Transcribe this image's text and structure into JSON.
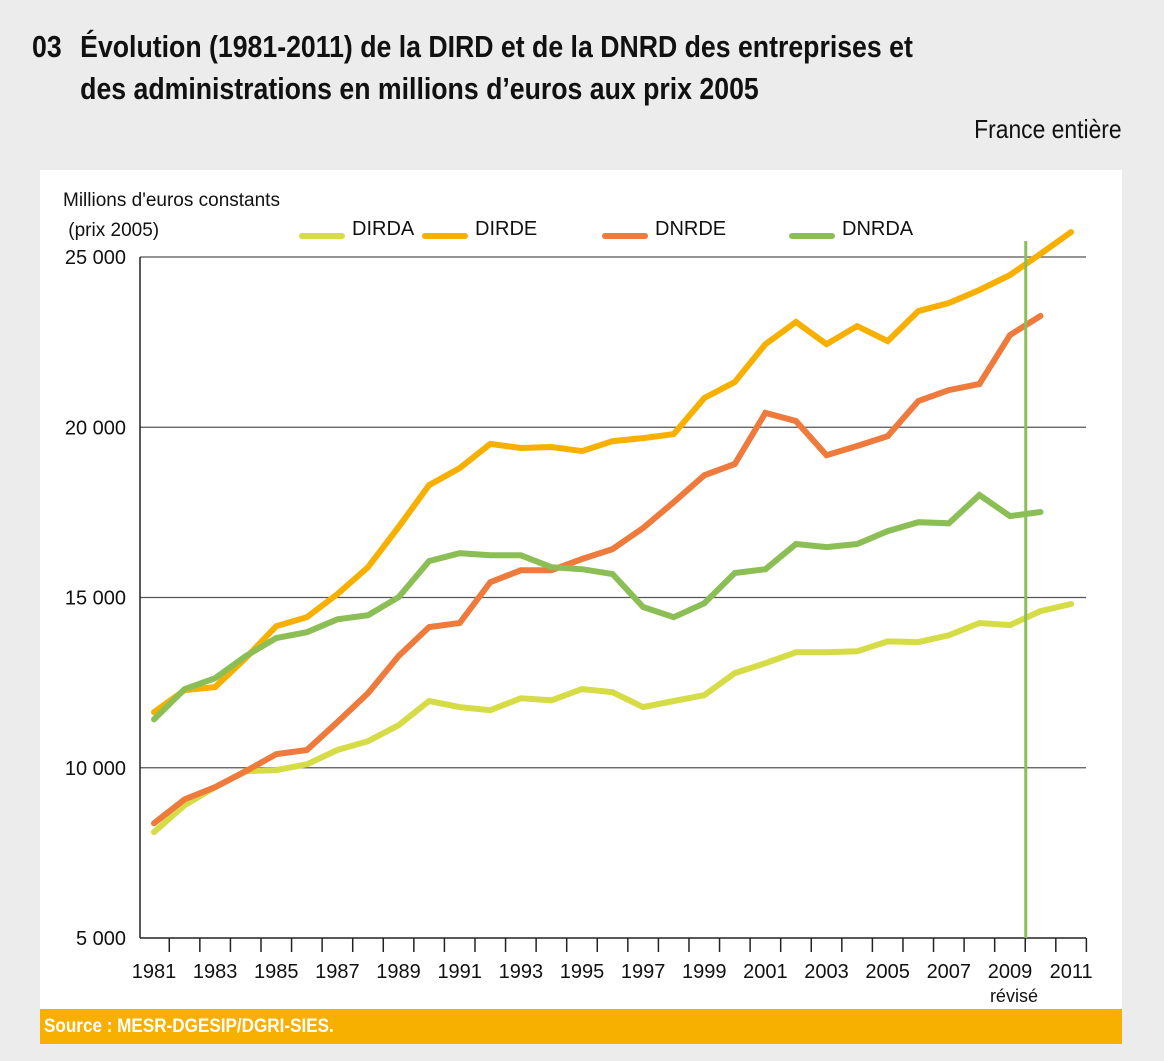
{
  "header": {
    "figure_number": "03",
    "title_line1": "Évolution (1981-2011) de la DIRD et de la DNRD des entreprises et",
    "title_line2": "des administrations en millions d’euros aux prix 2005",
    "subtitle": "France entière"
  },
  "footer": {
    "source": "Source : MESR-DGESIP/DGRI-SIES."
  },
  "chart_data": {
    "type": "line",
    "title": "Évolution (1981-2011) de la DIRD et de la DNRD des entreprises et des administrations en millions d’euros aux prix 2005",
    "ylabel_line1": "Millions d'euros constants",
    "ylabel_line2": " (prix 2005)",
    "xlabel": "",
    "ylim": [
      5000,
      25000
    ],
    "yticks": [
      5000,
      10000,
      15000,
      20000,
      25000
    ],
    "ytick_labels": [
      "5 000",
      "10 000",
      "15 000",
      "20 000",
      "25 000"
    ],
    "grid": "horizontal",
    "legend_position": "top",
    "x": [
      1981,
      1982,
      1983,
      1984,
      1985,
      1986,
      1987,
      1988,
      1989,
      1990,
      1991,
      1992,
      1993,
      1994,
      1995,
      1996,
      1997,
      1998,
      1999,
      2000,
      2001,
      2002,
      2003,
      2004,
      2005,
      2006,
      2007,
      2008,
      2009,
      2010,
      2011
    ],
    "xtick_labels": [
      "1981",
      "1983",
      "1985",
      "1987",
      "1989",
      "1991",
      "1993",
      "1995",
      "1997",
      "1999",
      "2001",
      "2003",
      "2005",
      "2007",
      "2009",
      "2011"
    ],
    "annotation": {
      "label": "révisé",
      "year": 2009,
      "line_color": "#8bbf56"
    },
    "series": [
      {
        "name": "DIRDA",
        "color": "#d6dc45",
        "values": [
          8110,
          8900,
          9430,
          9900,
          9930,
          10100,
          10520,
          10780,
          11250,
          11960,
          11780,
          11690,
          12040,
          11980,
          12310,
          12220,
          11780,
          11960,
          12130,
          12780,
          13070,
          13390,
          13390,
          13420,
          13710,
          13690,
          13890,
          14250,
          14190,
          14600,
          14810
        ]
      },
      {
        "name": "DIRDE",
        "color": "#f8b000",
        "values": [
          11630,
          12280,
          12370,
          13220,
          14160,
          14420,
          15100,
          15890,
          17070,
          18300,
          18800,
          19510,
          19390,
          19420,
          19300,
          19590,
          19680,
          19800,
          20860,
          21330,
          22440,
          23090,
          22440,
          22970,
          22530,
          23410,
          23650,
          24030,
          24470,
          25090,
          25730
        ]
      },
      {
        "name": "DNRDE",
        "color": "#ee7a3c",
        "values": [
          8370,
          9070,
          9430,
          9900,
          10400,
          10520,
          11340,
          12190,
          13280,
          14130,
          14250,
          15450,
          15800,
          15800,
          16130,
          16420,
          17040,
          17800,
          18590,
          18920,
          20420,
          20180,
          19180,
          19450,
          19740,
          20770,
          21090,
          21270,
          22710,
          23270,
          null
        ]
      },
      {
        "name": "DNRDA",
        "color": "#8bbf56",
        "values": [
          11420,
          12310,
          12630,
          13280,
          13810,
          13980,
          14360,
          14480,
          15010,
          16070,
          16300,
          16240,
          16240,
          15890,
          15830,
          15690,
          14720,
          14420,
          14830,
          15720,
          15830,
          16570,
          16480,
          16570,
          16950,
          17210,
          17180,
          18010,
          17390,
          17510,
          null
        ]
      }
    ]
  }
}
